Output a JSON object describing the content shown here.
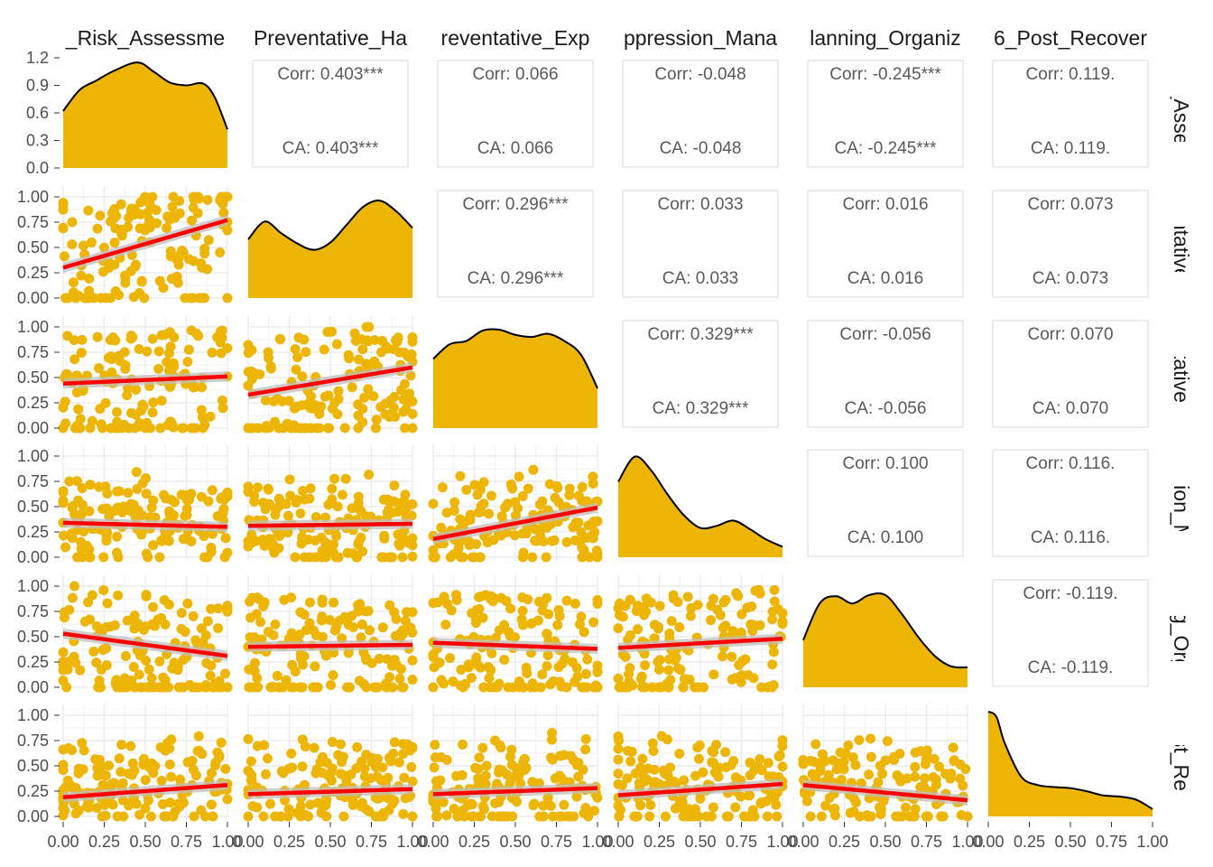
{
  "colors": {
    "point": "#EDB506",
    "density": "#EDB506",
    "fit_line": "#FF0000",
    "ci_band": "#BFBFBF",
    "grid": "#EBEBEB",
    "box": "#E0E0E0"
  },
  "chart_data": {
    "type": "scatter-matrix",
    "variables": [
      "_Risk_Assessme",
      "Preventative_Ha",
      "reventative_Exp",
      "ppression_Mana",
      "lanning_Organiz",
      "6_Post_Recover"
    ],
    "row_labels": [
      "isk_Assess",
      "ventative_",
      "ventative_E",
      "ession_Ma",
      "ning_Orga",
      "Post_Reco"
    ],
    "x_ticks": [
      "0.00",
      "0.25",
      "0.50",
      "0.75",
      "1.00"
    ],
    "y_ticks_density": [
      "0.0",
      "0.3",
      "0.6",
      "0.9",
      "1.2"
    ],
    "y_ticks": [
      "0.00",
      "0.25",
      "0.50",
      "0.75",
      "1.00"
    ],
    "density_ylim": [
      0,
      1.2
    ],
    "xlim": [
      0,
      1
    ],
    "ylim": [
      0,
      1
    ],
    "correlations": [
      {
        "row": 0,
        "col": 1,
        "corr": "Corr: 0.403***",
        "ca": "CA: 0.403***"
      },
      {
        "row": 0,
        "col": 2,
        "corr": "Corr: 0.066",
        "ca": "CA: 0.066"
      },
      {
        "row": 0,
        "col": 3,
        "corr": "Corr: -0.048",
        "ca": "CA: -0.048"
      },
      {
        "row": 0,
        "col": 4,
        "corr": "Corr: -0.245***",
        "ca": "CA: -0.245***"
      },
      {
        "row": 0,
        "col": 5,
        "corr": "Corr: 0.119.",
        "ca": "CA: 0.119."
      },
      {
        "row": 1,
        "col": 2,
        "corr": "Corr: 0.296***",
        "ca": "CA: 0.296***"
      },
      {
        "row": 1,
        "col": 3,
        "corr": "Corr: 0.033",
        "ca": "CA: 0.033"
      },
      {
        "row": 1,
        "col": 4,
        "corr": "Corr: 0.016",
        "ca": "CA: 0.016"
      },
      {
        "row": 1,
        "col": 5,
        "corr": "Corr: 0.073",
        "ca": "CA: 0.073"
      },
      {
        "row": 2,
        "col": 3,
        "corr": "Corr: 0.329***",
        "ca": "CA: 0.329***"
      },
      {
        "row": 2,
        "col": 4,
        "corr": "Corr: -0.056",
        "ca": "CA: -0.056"
      },
      {
        "row": 2,
        "col": 5,
        "corr": "Corr: 0.070",
        "ca": "CA: 0.070"
      },
      {
        "row": 3,
        "col": 4,
        "corr": "Corr: 0.100",
        "ca": "CA: 0.100"
      },
      {
        "row": 3,
        "col": 5,
        "corr": "Corr: 0.116.",
        "ca": "CA: 0.116."
      },
      {
        "row": 4,
        "col": 5,
        "corr": "Corr: -0.119.",
        "ca": "CA: -0.119."
      }
    ],
    "densities": [
      {
        "x": [
          0,
          0.1,
          0.2,
          0.3,
          0.45,
          0.55,
          0.65,
          0.75,
          0.85,
          0.92,
          1.0
        ],
        "y": [
          0.62,
          0.85,
          0.95,
          1.05,
          1.15,
          1.05,
          0.93,
          0.9,
          0.92,
          0.78,
          0.42
        ]
      },
      {
        "x": [
          0,
          0.1,
          0.2,
          0.3,
          0.4,
          0.5,
          0.6,
          0.7,
          0.8,
          0.9,
          1.0
        ],
        "y": [
          0.56,
          0.73,
          0.62,
          0.52,
          0.46,
          0.53,
          0.7,
          0.87,
          0.93,
          0.83,
          0.67
        ]
      },
      {
        "x": [
          0,
          0.1,
          0.2,
          0.3,
          0.4,
          0.5,
          0.6,
          0.7,
          0.8,
          0.9,
          1.0
        ],
        "y": [
          0.66,
          0.8,
          0.83,
          0.93,
          0.94,
          0.89,
          0.87,
          0.9,
          0.83,
          0.7,
          0.38
        ]
      },
      {
        "x": [
          0,
          0.1,
          0.2,
          0.3,
          0.4,
          0.5,
          0.6,
          0.7,
          0.8,
          0.9,
          1.0
        ],
        "y": [
          0.72,
          0.96,
          0.83,
          0.6,
          0.4,
          0.28,
          0.3,
          0.35,
          0.27,
          0.17,
          0.1
        ]
      },
      {
        "x": [
          0,
          0.1,
          0.2,
          0.3,
          0.4,
          0.5,
          0.6,
          0.7,
          0.8,
          0.9,
          1.0
        ],
        "y": [
          0.45,
          0.8,
          0.87,
          0.8,
          0.88,
          0.88,
          0.7,
          0.48,
          0.3,
          0.2,
          0.19
        ]
      },
      {
        "x": [
          0,
          0.05,
          0.1,
          0.2,
          0.3,
          0.4,
          0.5,
          0.6,
          0.7,
          0.8,
          0.9,
          1.0
        ],
        "y": [
          1.0,
          0.95,
          0.7,
          0.38,
          0.3,
          0.28,
          0.27,
          0.24,
          0.2,
          0.19,
          0.16,
          0.07
        ]
      }
    ],
    "fits": [
      {
        "row": 1,
        "col": 0,
        "y0": 0.3,
        "y1": 0.77
      },
      {
        "row": 2,
        "col": 0,
        "y0": 0.44,
        "y1": 0.51
      },
      {
        "row": 2,
        "col": 1,
        "y0": 0.33,
        "y1": 0.6
      },
      {
        "row": 3,
        "col": 0,
        "y0": 0.34,
        "y1": 0.3
      },
      {
        "row": 3,
        "col": 1,
        "y0": 0.31,
        "y1": 0.33
      },
      {
        "row": 3,
        "col": 2,
        "y0": 0.18,
        "y1": 0.49
      },
      {
        "row": 4,
        "col": 0,
        "y0": 0.53,
        "y1": 0.31
      },
      {
        "row": 4,
        "col": 1,
        "y0": 0.4,
        "y1": 0.42
      },
      {
        "row": 4,
        "col": 2,
        "y0": 0.44,
        "y1": 0.38
      },
      {
        "row": 4,
        "col": 3,
        "y0": 0.39,
        "y1": 0.48
      },
      {
        "row": 5,
        "col": 0,
        "y0": 0.19,
        "y1": 0.31
      },
      {
        "row": 5,
        "col": 1,
        "y0": 0.22,
        "y1": 0.27
      },
      {
        "row": 5,
        "col": 2,
        "y0": 0.22,
        "y1": 0.28
      },
      {
        "row": 5,
        "col": 3,
        "y0": 0.21,
        "y1": 0.32
      },
      {
        "row": 5,
        "col": 4,
        "y0": 0.31,
        "y1": 0.16
      }
    ],
    "points_per_panel": 150
  }
}
